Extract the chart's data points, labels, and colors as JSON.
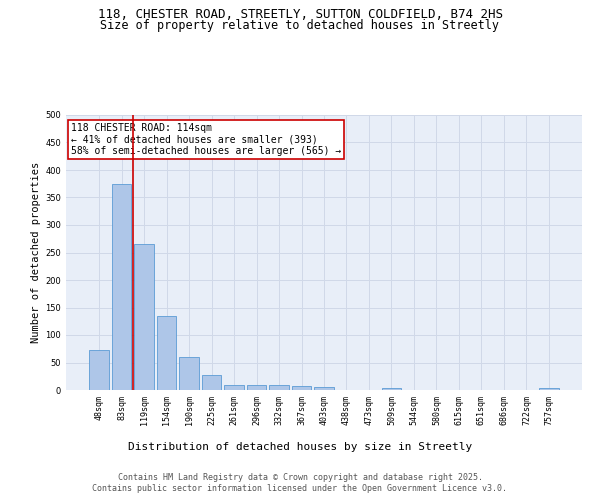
{
  "title_line1": "118, CHESTER ROAD, STREETLY, SUTTON COLDFIELD, B74 2HS",
  "title_line2": "Size of property relative to detached houses in Streetly",
  "xlabel": "Distribution of detached houses by size in Streetly",
  "ylabel": "Number of detached properties",
  "categories": [
    "48sqm",
    "83sqm",
    "119sqm",
    "154sqm",
    "190sqm",
    "225sqm",
    "261sqm",
    "296sqm",
    "332sqm",
    "367sqm",
    "403sqm",
    "438sqm",
    "473sqm",
    "509sqm",
    "544sqm",
    "580sqm",
    "615sqm",
    "651sqm",
    "686sqm",
    "722sqm",
    "757sqm"
  ],
  "values": [
    72,
    375,
    265,
    135,
    60,
    28,
    10,
    10,
    10,
    8,
    5,
    0,
    0,
    3,
    0,
    0,
    0,
    0,
    0,
    0,
    3
  ],
  "bar_color": "#aec6e8",
  "bar_edge_color": "#5b9bd5",
  "highlight_line_color": "#cc0000",
  "annotation_text": "118 CHESTER ROAD: 114sqm\n← 41% of detached houses are smaller (393)\n58% of semi-detached houses are larger (565) →",
  "annotation_box_color": "#ffffff",
  "annotation_box_edge_color": "#cc0000",
  "ylim": [
    0,
    500
  ],
  "yticks": [
    0,
    50,
    100,
    150,
    200,
    250,
    300,
    350,
    400,
    450,
    500
  ],
  "grid_color": "#d0d8e8",
  "bg_color": "#e8eef8",
  "footer_line1": "Contains HM Land Registry data © Crown copyright and database right 2025.",
  "footer_line2": "Contains public sector information licensed under the Open Government Licence v3.0.",
  "title_fontsize": 9,
  "subtitle_fontsize": 8.5,
  "tick_fontsize": 6,
  "xlabel_fontsize": 8,
  "ylabel_fontsize": 7.5,
  "annotation_fontsize": 7,
  "footer_fontsize": 6
}
